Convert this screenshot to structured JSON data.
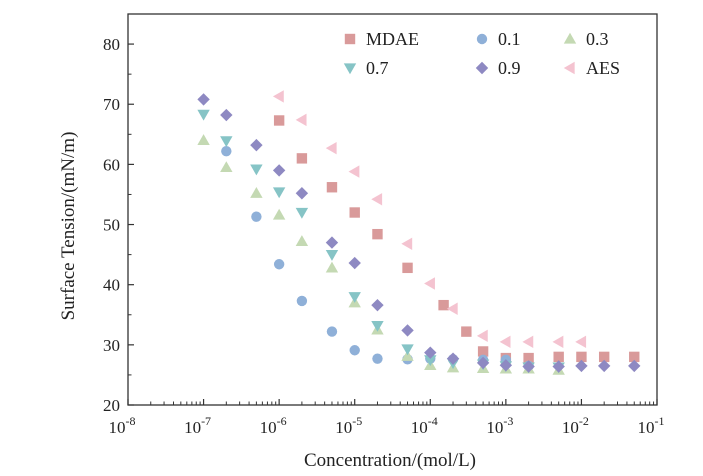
{
  "chart_data": {
    "type": "scatter",
    "xscale": "log",
    "xlabel": "Concentration/(mol/L)",
    "ylabel": "Surface Tension/(mN/m)",
    "xlim": [
      1e-08,
      0.1
    ],
    "ylim": [
      20,
      85
    ],
    "x_ticks": [
      {
        "base": "10",
        "exp": "-8",
        "value": 1e-08
      },
      {
        "base": "10",
        "exp": "-7",
        "value": 1e-07
      },
      {
        "base": "10",
        "exp": "-6",
        "value": 1e-06
      },
      {
        "base": "10",
        "exp": "-5",
        "value": 1e-05
      },
      {
        "base": "10",
        "exp": "-4",
        "value": 0.0001
      },
      {
        "base": "10",
        "exp": "-3",
        "value": 0.001
      },
      {
        "base": "10",
        "exp": "-2",
        "value": 0.01
      },
      {
        "base": "10",
        "exp": "-1",
        "value": 0.1
      }
    ],
    "y_ticks": [
      "20",
      "30",
      "40",
      "50",
      "60",
      "70",
      "80"
    ],
    "legend_position": "top-right",
    "series": [
      {
        "name": "MDAE",
        "marker": "square",
        "color": "#d99a9a",
        "points": [
          [
            1e-06,
            67.3
          ],
          [
            2e-06,
            61
          ],
          [
            5e-06,
            56.2
          ],
          [
            1e-05,
            52
          ],
          [
            2e-05,
            48.4
          ],
          [
            5e-05,
            42.8
          ],
          [
            0.00015,
            36.6
          ],
          [
            0.0003,
            32.2
          ],
          [
            0.0005,
            28.9
          ],
          [
            0.001,
            27.8
          ],
          [
            0.002,
            27.8
          ],
          [
            0.005,
            28
          ],
          [
            0.01,
            28
          ],
          [
            0.02,
            28
          ],
          [
            0.05,
            28
          ]
        ]
      },
      {
        "name": "0.1",
        "marker": "circle",
        "color": "#8fb0d8",
        "points": [
          [
            2e-07,
            62.2
          ],
          [
            5e-07,
            51.3
          ],
          [
            1e-06,
            43.4
          ],
          [
            2e-06,
            37.3
          ],
          [
            5e-06,
            32.2
          ],
          [
            1e-05,
            29.1
          ],
          [
            2e-05,
            27.7
          ],
          [
            5e-05,
            27.6
          ],
          [
            0.0001,
            27.7
          ],
          [
            0.0002,
            27.6
          ],
          [
            0.0005,
            27.5
          ],
          [
            0.001,
            27.5
          ],
          [
            0.002,
            26.5
          ]
        ]
      },
      {
        "name": "0.3",
        "marker": "triangle-up",
        "color": "#c4d9b3",
        "points": [
          [
            1e-07,
            64
          ],
          [
            2e-07,
            59.5
          ],
          [
            5e-07,
            55.2
          ],
          [
            1e-06,
            51.6
          ],
          [
            2e-06,
            47.2
          ],
          [
            5e-06,
            42.8
          ],
          [
            1e-05,
            37
          ],
          [
            2e-05,
            32.5
          ],
          [
            5e-05,
            28.1
          ],
          [
            0.0001,
            26.6
          ],
          [
            0.0002,
            26.2
          ],
          [
            0.0005,
            26.1
          ],
          [
            0.001,
            26
          ],
          [
            0.002,
            26
          ],
          [
            0.005,
            25.8
          ]
        ]
      },
      {
        "name": "0.7",
        "marker": "triangle-down",
        "color": "#86c4c6",
        "points": [
          [
            1e-07,
            68.3
          ],
          [
            2e-07,
            63.9
          ],
          [
            5e-07,
            59.2
          ],
          [
            1e-06,
            55.4
          ],
          [
            2e-06,
            52
          ],
          [
            5e-06,
            45
          ],
          [
            1e-05,
            38
          ],
          [
            2e-05,
            33.2
          ],
          [
            5e-05,
            29.3
          ],
          [
            0.0001,
            27.5
          ],
          [
            0.0002,
            27
          ],
          [
            0.0005,
            26.8
          ],
          [
            0.001,
            26.5
          ],
          [
            0.002,
            26.3
          ],
          [
            0.005,
            26.3
          ]
        ]
      },
      {
        "name": "0.9",
        "marker": "diamond",
        "color": "#8e89c2",
        "points": [
          [
            1e-07,
            70.8
          ],
          [
            2e-07,
            68.2
          ],
          [
            5e-07,
            63.2
          ],
          [
            1e-06,
            59
          ],
          [
            2e-06,
            55.2
          ],
          [
            5e-06,
            47
          ],
          [
            1e-05,
            43.6
          ],
          [
            2e-05,
            36.6
          ],
          [
            5e-05,
            32.4
          ],
          [
            0.0001,
            28.7
          ],
          [
            0.0002,
            27.7
          ],
          [
            0.0005,
            27
          ],
          [
            0.001,
            26.6
          ],
          [
            0.002,
            26.4
          ],
          [
            0.005,
            26.4
          ],
          [
            0.01,
            26.5
          ],
          [
            0.02,
            26.5
          ],
          [
            0.05,
            26.5
          ]
        ]
      },
      {
        "name": "AES",
        "marker": "triangle-left",
        "color": "#f4c3d0",
        "points": [
          [
            1e-06,
            71.3
          ],
          [
            2e-06,
            67.4
          ],
          [
            5e-06,
            62.7
          ],
          [
            1e-05,
            58.8
          ],
          [
            2e-05,
            54.2
          ],
          [
            5e-05,
            46.8
          ],
          [
            0.0001,
            40.2
          ],
          [
            0.0002,
            36
          ],
          [
            0.0005,
            31.5
          ],
          [
            0.001,
            30.5
          ],
          [
            0.002,
            30.5
          ],
          [
            0.005,
            30.5
          ],
          [
            0.01,
            30.5
          ]
        ]
      }
    ]
  }
}
